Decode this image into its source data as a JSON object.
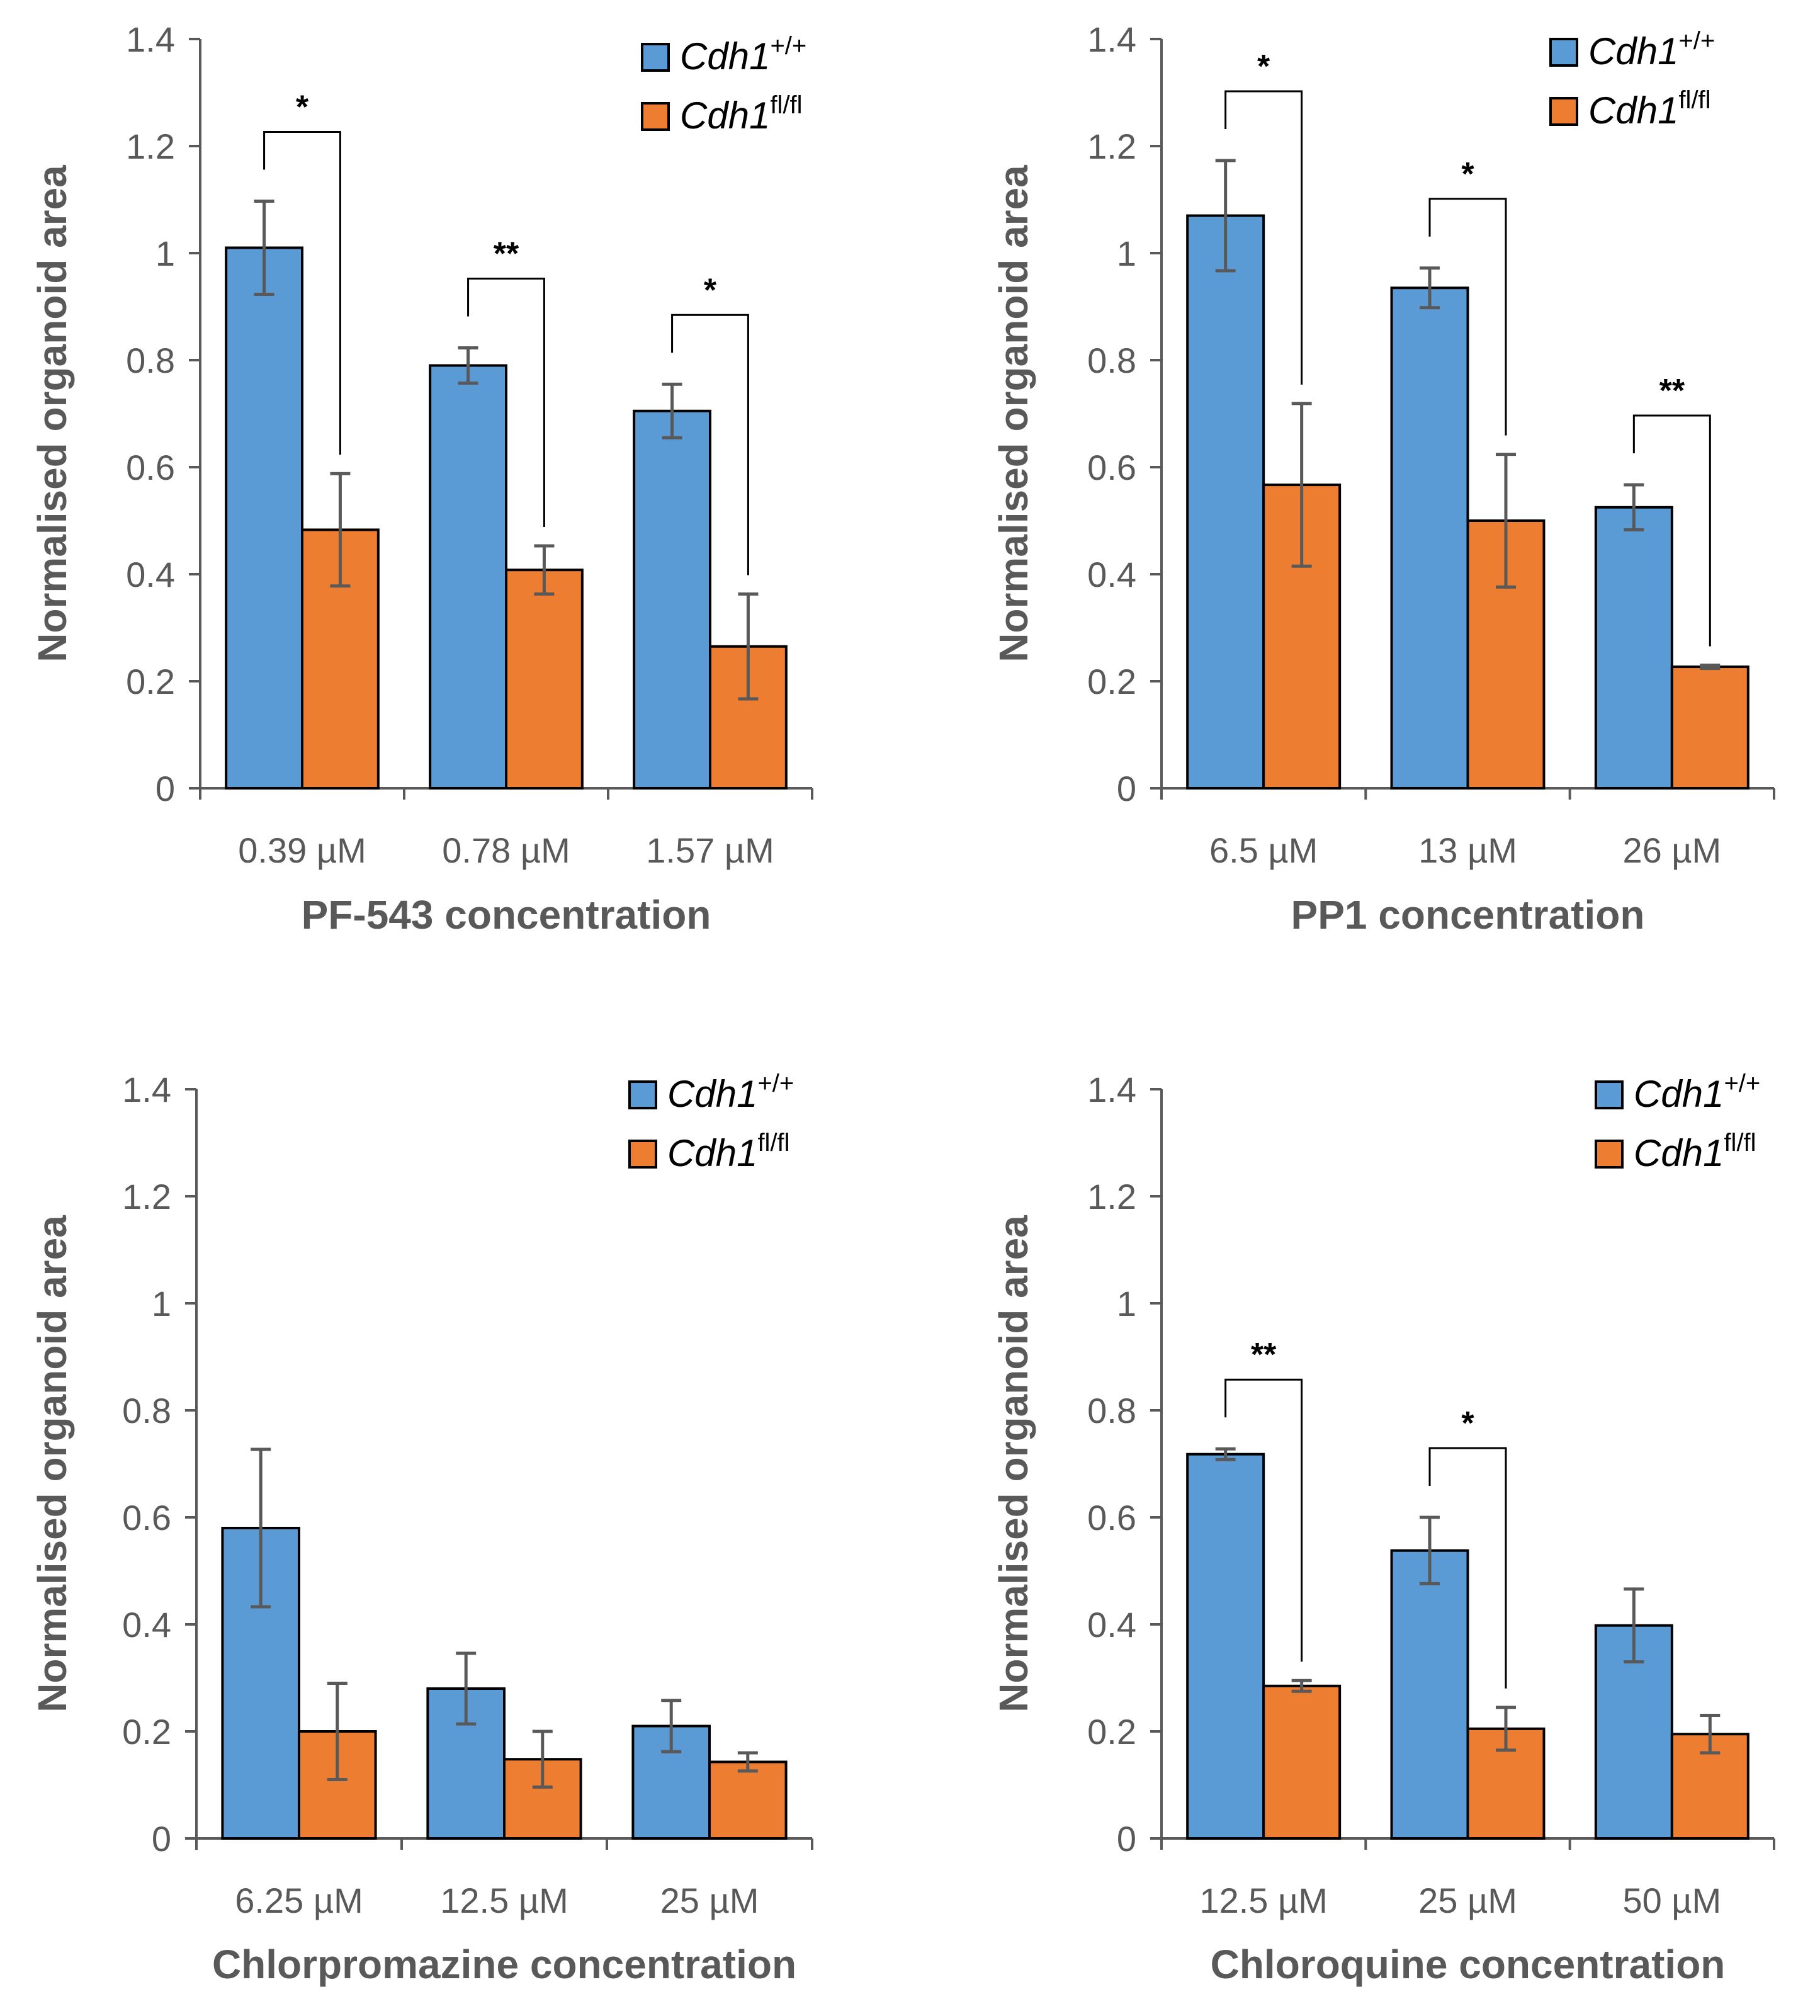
{
  "colors": {
    "wt": "#5B9BD5",
    "ko": "#ED7D31",
    "axis": "#595959",
    "err": "#595959",
    "outline": "#000000"
  },
  "chart_data": [
    {
      "type": "bar",
      "ylabel": "Normalised organoid area",
      "xlabel": "PF-543 concentration",
      "ylim": [
        0,
        1.4
      ],
      "yticks": [
        "0",
        "0.2",
        "0.4",
        "0.6",
        "0.8",
        "1",
        "1.2",
        "1.4"
      ],
      "categories": [
        "0.39 µM",
        "0.78 µM",
        "1.57 µM"
      ],
      "series": [
        {
          "name": "Cdh1",
          "sup": "+/+",
          "values": [
            1.01,
            0.79,
            0.705
          ],
          "err": [
            0.087,
            0.033,
            0.05
          ]
        },
        {
          "name": "Cdh1",
          "sup": "fl/fl",
          "values": [
            0.483,
            0.408,
            0.265
          ],
          "err": [
            0.105,
            0.045,
            0.098
          ]
        }
      ],
      "significance": [
        "*",
        "**",
        "*"
      ]
    },
    {
      "type": "bar",
      "ylabel": "Normalised organoid area",
      "xlabel": "PP1 concentration",
      "ylim": [
        0,
        1.4
      ],
      "yticks": [
        "0",
        "0.2",
        "0.4",
        "0.6",
        "0.8",
        "1",
        "1.2",
        "1.4"
      ],
      "categories": [
        "6.5 µM",
        "13 µM",
        "26 µM"
      ],
      "series": [
        {
          "name": "Cdh1",
          "sup": "+/+",
          "values": [
            1.07,
            0.935,
            0.525
          ],
          "err": [
            0.103,
            0.037,
            0.042
          ]
        },
        {
          "name": "Cdh1",
          "sup": "fl/fl",
          "values": [
            0.567,
            0.5,
            0.227
          ],
          "err": [
            0.152,
            0.124,
            0.003
          ]
        }
      ],
      "significance": [
        "*",
        "*",
        "**"
      ]
    },
    {
      "type": "bar",
      "ylabel": "Normalised organoid area",
      "xlabel": "Chlorpromazine  concentration",
      "ylim": [
        0,
        1.4
      ],
      "yticks": [
        "0",
        "0.2",
        "0.4",
        "0.6",
        "0.8",
        "1",
        "1.2",
        "1.4"
      ],
      "categories": [
        "6.25 µM",
        "12.5 µM",
        "25 µM"
      ],
      "series": [
        {
          "name": "Cdh1",
          "sup": "+/+",
          "values": [
            0.58,
            0.28,
            0.21
          ],
          "err": [
            0.147,
            0.066,
            0.048
          ]
        },
        {
          "name": "Cdh1",
          "sup": "fl/fl",
          "values": [
            0.2,
            0.148,
            0.143
          ],
          "err": [
            0.09,
            0.052,
            0.017
          ]
        }
      ],
      "significance": [
        "",
        "",
        ""
      ]
    },
    {
      "type": "bar",
      "ylabel": "Normalised organoid area",
      "xlabel": "Chloroquine concentration",
      "ylim": [
        0,
        1.4
      ],
      "yticks": [
        "0",
        "0.2",
        "0.4",
        "0.6",
        "0.8",
        "1",
        "1.2",
        "1.4"
      ],
      "categories": [
        "12.5 µM",
        "25 µM",
        "50 µM"
      ],
      "series": [
        {
          "name": "Cdh1",
          "sup": "+/+",
          "values": [
            0.718,
            0.538,
            0.398
          ],
          "err": [
            0.01,
            0.062,
            0.068
          ]
        },
        {
          "name": "Cdh1",
          "sup": "fl/fl",
          "values": [
            0.285,
            0.205,
            0.195
          ],
          "err": [
            0.01,
            0.04,
            0.035
          ]
        }
      ],
      "significance": [
        "**",
        "*",
        ""
      ]
    }
  ]
}
